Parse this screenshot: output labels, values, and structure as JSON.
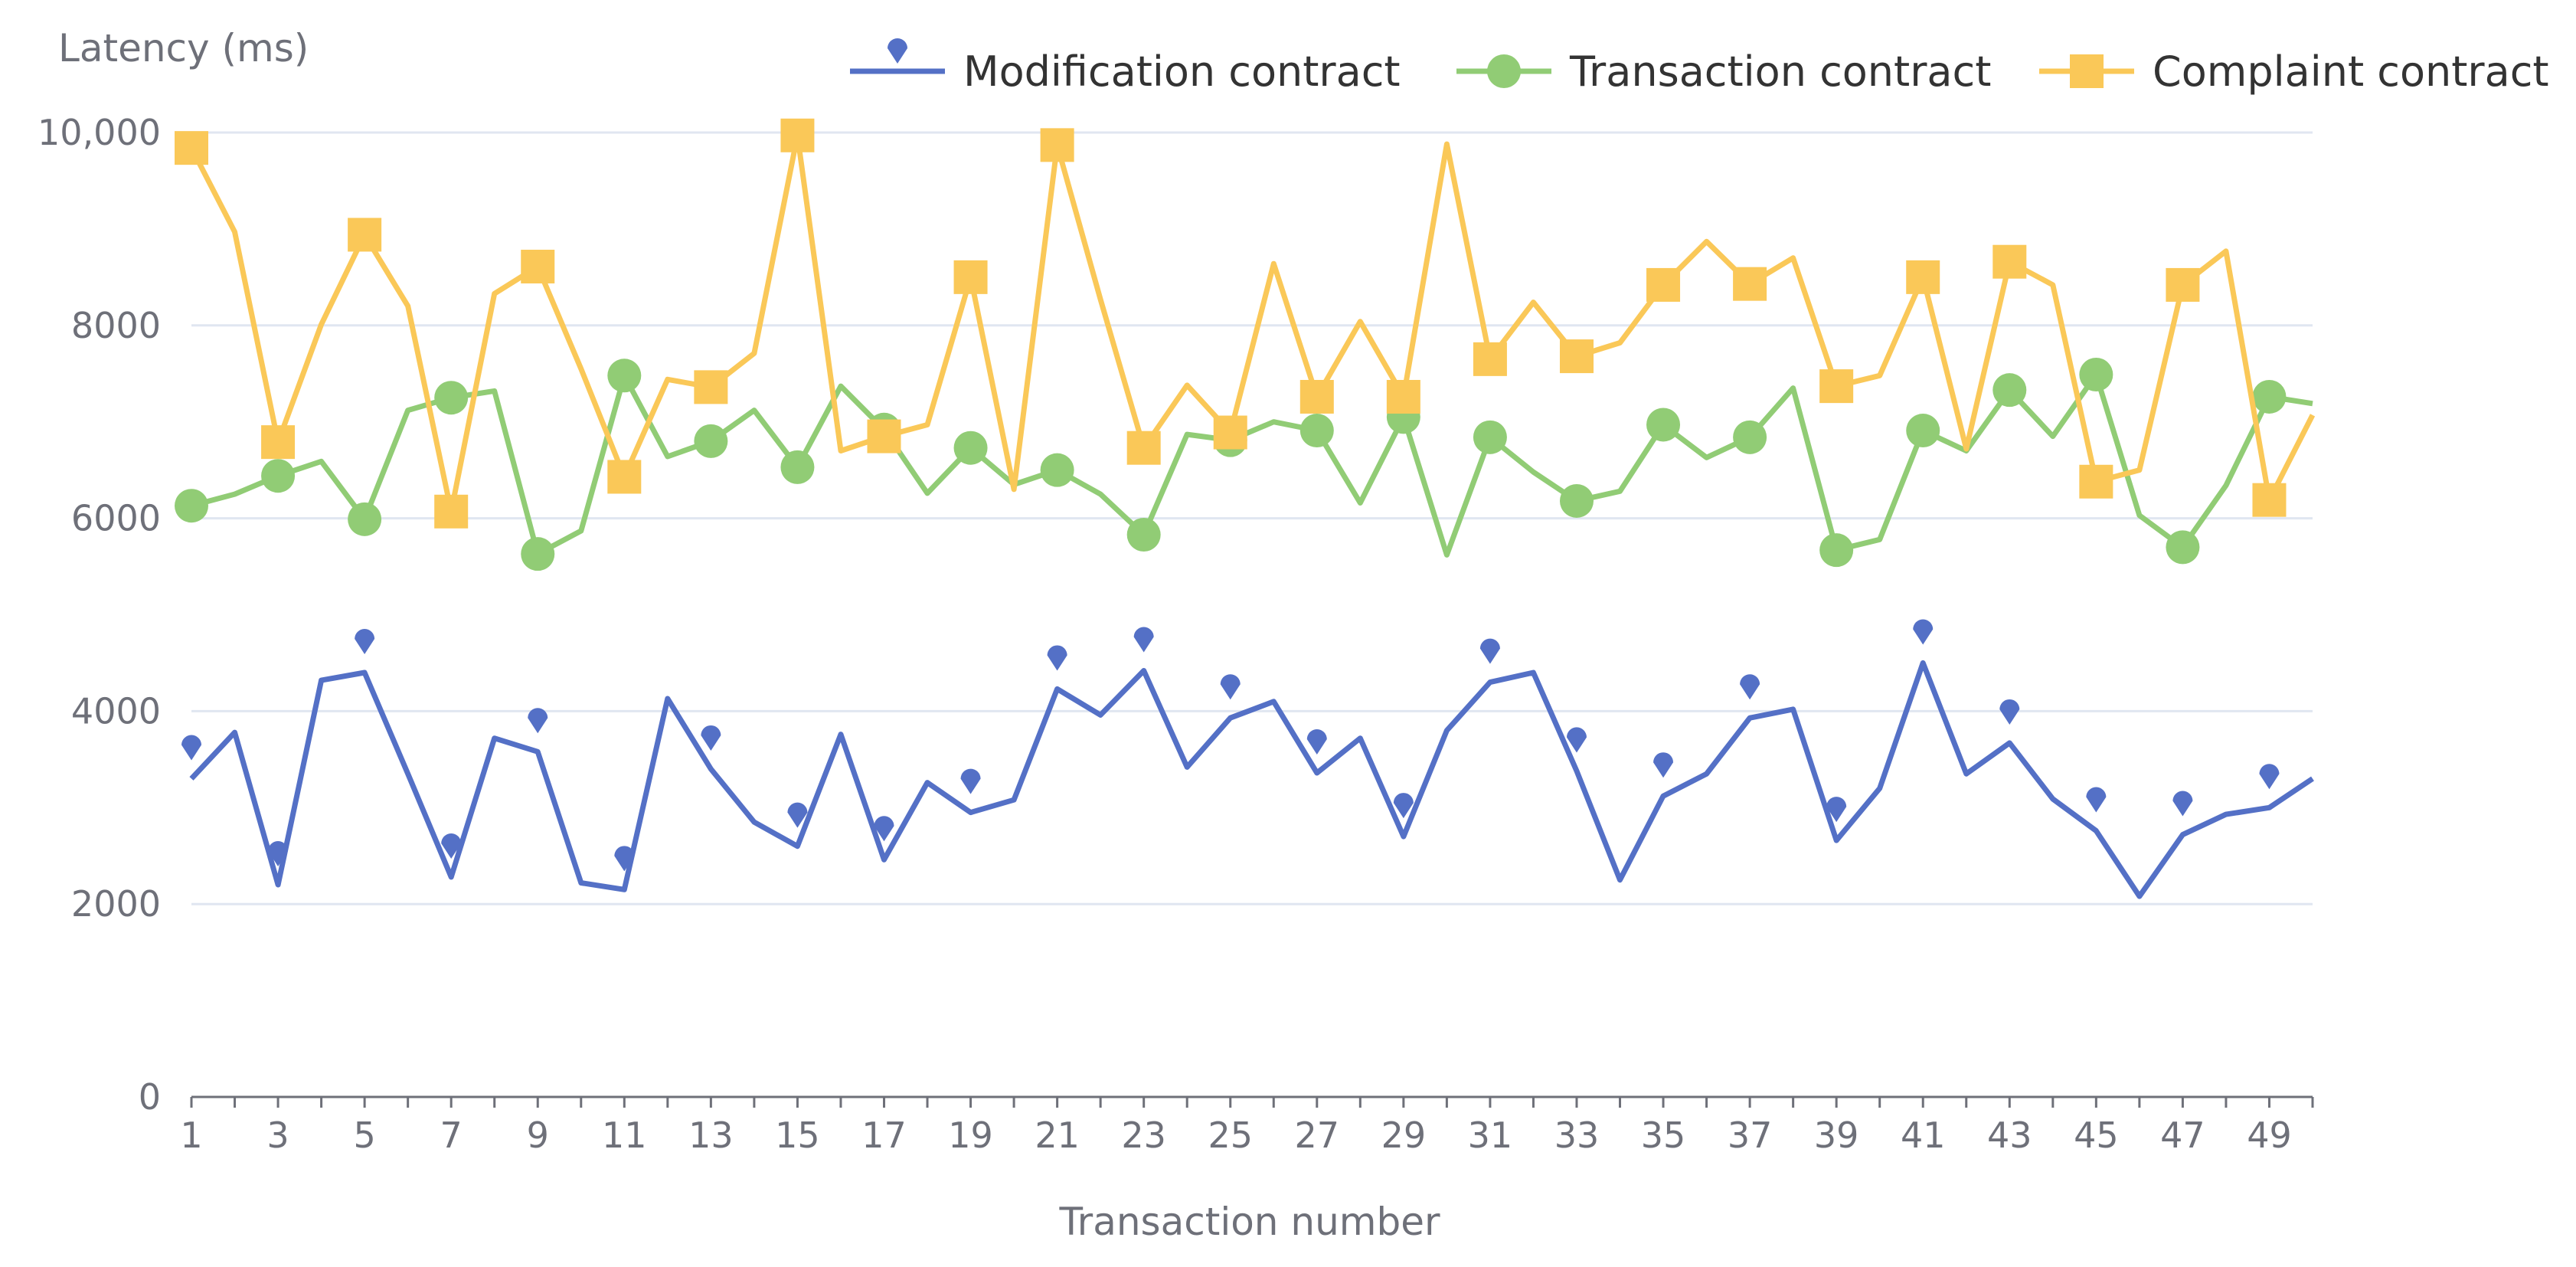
{
  "chart_data": {
    "type": "line",
    "title": "",
    "ylabel": "Latency (ms)",
    "xlabel": "Transaction number",
    "ylim": [
      0,
      10000
    ],
    "yticks": [
      0,
      2000,
      4000,
      6000,
      8000,
      10000
    ],
    "ytick_labels": [
      "0",
      "2000",
      "4000",
      "6000",
      "8000",
      "10,000"
    ],
    "x": [
      1,
      2,
      3,
      4,
      5,
      6,
      7,
      8,
      9,
      10,
      11,
      12,
      13,
      14,
      15,
      16,
      17,
      18,
      19,
      20,
      21,
      22,
      23,
      24,
      25,
      26,
      27,
      28,
      29,
      30,
      31,
      32,
      33,
      34,
      35,
      36,
      37,
      38,
      39,
      40,
      41,
      42,
      43,
      44,
      45,
      46,
      47,
      48,
      49,
      50
    ],
    "xtick_labels": [
      "1",
      "3",
      "5",
      "7",
      "9",
      "11",
      "13",
      "15",
      "17",
      "19",
      "21",
      "23",
      "25",
      "27",
      "29",
      "31",
      "33",
      "35",
      "37",
      "39",
      "41",
      "43",
      "45",
      "47",
      "49"
    ],
    "xtick_values": [
      1,
      3,
      5,
      7,
      9,
      11,
      13,
      15,
      17,
      19,
      21,
      23,
      25,
      27,
      29,
      31,
      33,
      35,
      37,
      39,
      41,
      43,
      45,
      47,
      49
    ],
    "grid": true,
    "legend_position": "top-right",
    "series": [
      {
        "name": "Modification contract",
        "color": "#5470c6",
        "marker": "pin",
        "values": [
          3300,
          3780,
          2200,
          4320,
          4400,
          3350,
          2280,
          3720,
          3580,
          2220,
          2150,
          4130,
          3400,
          2850,
          2600,
          3760,
          2460,
          3260,
          2950,
          3080,
          4230,
          3960,
          4420,
          3420,
          3930,
          4100,
          3360,
          3720,
          2700,
          3800,
          4300,
          4400,
          3380,
          2250,
          3120,
          3350,
          3930,
          4020,
          2660,
          3200,
          4500,
          3350,
          3670,
          3090,
          2760,
          2080,
          2720,
          2930,
          3000,
          3300
        ]
      },
      {
        "name": "Transaction contract",
        "color": "#91cc75",
        "marker": "circle",
        "values": [
          6130,
          6250,
          6440,
          6590,
          5990,
          7120,
          7250,
          7320,
          5630,
          5870,
          7480,
          6640,
          6800,
          7120,
          6530,
          7370,
          6920,
          6260,
          6730,
          6350,
          6500,
          6250,
          5830,
          6870,
          6810,
          7000,
          6910,
          6160,
          7050,
          5620,
          6840,
          6480,
          6180,
          6280,
          6970,
          6630,
          6840,
          7350,
          5670,
          5780,
          6910,
          6700,
          7330,
          6850,
          7490,
          6030,
          5700,
          6340,
          7260,
          7190
        ]
      },
      {
        "name": "Complaint contract",
        "color": "#fac858",
        "marker": "square",
        "values": [
          9840,
          8970,
          6790,
          8010,
          8940,
          8200,
          6070,
          8330,
          8610,
          7550,
          6430,
          7440,
          7360,
          7710,
          9970,
          6700,
          6850,
          6970,
          8500,
          6300,
          9870,
          8270,
          6730,
          7380,
          6890,
          8640,
          7260,
          8040,
          7260,
          9880,
          7650,
          8240,
          7680,
          7820,
          8420,
          8870,
          8430,
          8700,
          7370,
          7480,
          8500,
          6720,
          8660,
          8420,
          6380,
          6500,
          8420,
          8770,
          6190,
          7070
        ]
      }
    ]
  }
}
